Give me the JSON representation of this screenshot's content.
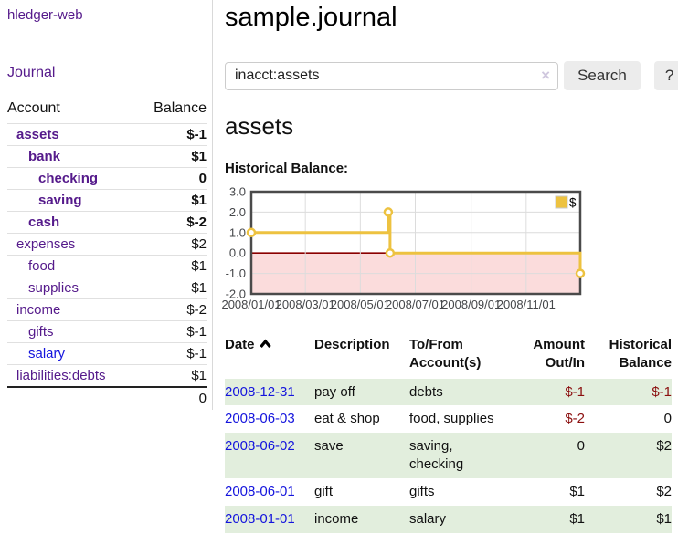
{
  "sidebar": {
    "app_title": "hledger-web",
    "nav": {
      "journal": "Journal"
    },
    "accounts_table": {
      "headers": {
        "account": "Account",
        "balance": "Balance"
      },
      "rows": [
        {
          "name": "assets",
          "level": 1,
          "bold": true,
          "balance": "$-1",
          "balance_style": "neg"
        },
        {
          "name": "bank",
          "level": 2,
          "bold": true,
          "balance": "$1",
          "balance_style": "pos"
        },
        {
          "name": "checking",
          "level": 3,
          "bold": true,
          "balance": "0",
          "balance_style": "pos"
        },
        {
          "name": "saving",
          "level": 3,
          "bold": true,
          "balance": "$1",
          "balance_style": "pos"
        },
        {
          "name": "cash",
          "level": 2,
          "bold": true,
          "balance": "$-2",
          "balance_style": "neg"
        },
        {
          "name": "expenses",
          "level": 1,
          "bold": false,
          "balance": "$2",
          "balance_style": "pos"
        },
        {
          "name": "food",
          "level": 2,
          "bold": false,
          "balance": "$1",
          "balance_style": "pos"
        },
        {
          "name": "supplies",
          "level": 2,
          "bold": false,
          "balance": "$1",
          "balance_style": "pos"
        },
        {
          "name": "income",
          "level": 1,
          "bold": false,
          "balance": "$-2",
          "balance_style": "neg-muted"
        },
        {
          "name": "gifts",
          "level": 2,
          "bold": false,
          "balance": "$-1",
          "balance_style": "neg-muted"
        },
        {
          "name": "salary",
          "level": 2,
          "bold": false,
          "link_color": "blue",
          "balance": "$-1",
          "balance_style": "neg-muted"
        },
        {
          "name": "liabilities:debts",
          "level": 1,
          "bold": false,
          "balance": "$1",
          "balance_style": "pos"
        }
      ],
      "total": "0"
    }
  },
  "main": {
    "title": "sample.journal",
    "account_heading": "assets",
    "chart_label": "Historical Balance:"
  },
  "search": {
    "query": "inacct:assets",
    "clear_icon": "×",
    "button_label": "Search",
    "help_label": "?"
  },
  "chart_data": {
    "type": "line",
    "title": "Historical Balance",
    "step": true,
    "x_range": [
      "2008/01/01",
      "2008/12/31"
    ],
    "x_ticks": [
      "2008/01/01",
      "2008/03/01",
      "2008/05/01",
      "2008/07/01",
      "2008/09/01",
      "2008/11/01"
    ],
    "y_ticks": [
      "3.0",
      "2.0",
      "1.0",
      "0.0",
      "-1.0",
      "-2.0"
    ],
    "ylim": [
      -2,
      3
    ],
    "grid": true,
    "legend": {
      "label": "$",
      "position": "top-right"
    },
    "series": [
      {
        "name": "$",
        "color": "#EDC240",
        "points": [
          [
            "2008/01/01",
            1
          ],
          [
            "2008/06/01",
            2
          ],
          [
            "2008/06/03",
            0
          ],
          [
            "2008/12/31",
            -1
          ]
        ]
      }
    ],
    "colors": {
      "negative_region_fill": "#fbdcdc",
      "zero_line": "#8b0000",
      "grid_line": "#dcdcdc",
      "plot_border": "#4a4a4a",
      "tick_text": "#45474a",
      "marker_fill": "#ffffff"
    }
  },
  "register": {
    "headers": {
      "date": "Date",
      "description": "Description",
      "accounts": "To/From Account(s)",
      "amount": "Amount Out/In",
      "balance": "Historical Balance"
    },
    "rows": [
      {
        "date": "2008-12-31",
        "description": "pay off",
        "accounts": "debts",
        "amount": "$-1",
        "amount_neg": true,
        "balance": "$-1",
        "balance_neg": true
      },
      {
        "date": "2008-06-03",
        "description": "eat & shop",
        "accounts": "food, supplies",
        "amount": "$-2",
        "amount_neg": true,
        "balance": "0",
        "balance_neg": false
      },
      {
        "date": "2008-06-02",
        "description": "save",
        "accounts": "saving, checking",
        "amount": "0",
        "amount_neg": false,
        "balance": "$2",
        "balance_neg": false
      },
      {
        "date": "2008-06-01",
        "description": "gift",
        "accounts": "gifts",
        "amount": "$1",
        "amount_neg": false,
        "balance": "$2",
        "balance_neg": false
      },
      {
        "date": "2008-01-01",
        "description": "income",
        "accounts": "salary",
        "amount": "$1",
        "amount_neg": false,
        "balance": "$1",
        "balance_neg": false
      }
    ]
  }
}
